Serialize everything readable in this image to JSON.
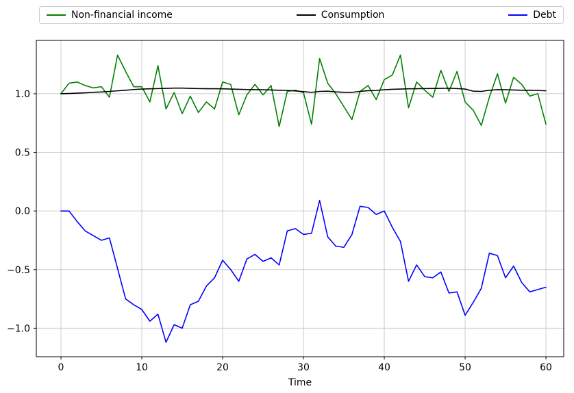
{
  "figure": {
    "background": "#ffffff",
    "grid_color": "#cccccc",
    "spine_color": "#000000"
  },
  "chart_data": {
    "type": "line",
    "title": "",
    "xlabel": "Time",
    "ylabel": "",
    "xlim": [
      -3.05,
      62.2
    ],
    "ylim": [
      -1.243,
      1.455
    ],
    "xticks": [
      0,
      10,
      20,
      30,
      40,
      50,
      60
    ],
    "xtick_labels": [
      "0",
      "10",
      "20",
      "30",
      "40",
      "50",
      "60"
    ],
    "yticks": [
      1.0,
      0.5,
      0.0,
      -0.5,
      -1.0
    ],
    "ytick_labels": [
      "1.0",
      "0.5",
      "0.0",
      "−0.5",
      "−1.0"
    ],
    "grid": true,
    "legend_position": "top-expanded",
    "x": [
      0,
      1,
      2,
      3,
      4,
      5,
      6,
      7,
      8,
      9,
      10,
      11,
      12,
      13,
      14,
      15,
      16,
      17,
      18,
      19,
      20,
      21,
      22,
      23,
      24,
      25,
      26,
      27,
      28,
      29,
      30,
      31,
      32,
      33,
      34,
      35,
      36,
      37,
      38,
      39,
      40,
      41,
      42,
      43,
      44,
      45,
      46,
      47,
      48,
      49,
      50,
      51,
      52,
      53,
      54,
      55,
      56,
      57,
      58,
      59,
      60
    ],
    "series": [
      {
        "name": "Non-financial income",
        "color": "#008000",
        "values": [
          1.0,
          1.09,
          1.1,
          1.07,
          1.05,
          1.06,
          0.97,
          1.33,
          1.19,
          1.06,
          1.06,
          0.93,
          1.24,
          0.87,
          1.01,
          0.83,
          0.98,
          0.84,
          0.93,
          0.87,
          1.1,
          1.08,
          0.82,
          0.99,
          1.08,
          0.99,
          1.07,
          0.72,
          1.02,
          1.03,
          1.01,
          0.74,
          1.3,
          1.09,
          1.0,
          0.89,
          0.78,
          1.02,
          1.07,
          0.95,
          1.12,
          1.16,
          1.33,
          0.88,
          1.1,
          1.03,
          0.97,
          1.2,
          1.02,
          1.19,
          0.93,
          0.86,
          0.73,
          0.97,
          1.17,
          0.92,
          1.14,
          1.08,
          0.98,
          1.0,
          0.74
        ]
      },
      {
        "name": "Consumption",
        "color": "#000000",
        "values": [
          1.0,
          1.002,
          1.005,
          1.008,
          1.012,
          1.015,
          1.02,
          1.025,
          1.03,
          1.036,
          1.04,
          1.042,
          1.044,
          1.046,
          1.048,
          1.048,
          1.046,
          1.044,
          1.043,
          1.043,
          1.042,
          1.04,
          1.038,
          1.036,
          1.035,
          1.034,
          1.032,
          1.03,
          1.028,
          1.024,
          1.018,
          1.012,
          1.02,
          1.022,
          1.016,
          1.012,
          1.012,
          1.02,
          1.026,
          1.028,
          1.034,
          1.038,
          1.04,
          1.042,
          1.043,
          1.044,
          1.045,
          1.046,
          1.047,
          1.044,
          1.04,
          1.022,
          1.02,
          1.03,
          1.035,
          1.034,
          1.032,
          1.03,
          1.03,
          1.028,
          1.025
        ]
      },
      {
        "name": "Debt",
        "color": "#0000ff",
        "values": [
          0.0,
          0.0,
          -0.09,
          -0.17,
          -0.21,
          -0.25,
          -0.23,
          -0.49,
          -0.75,
          -0.8,
          -0.84,
          -0.94,
          -0.88,
          -1.12,
          -0.97,
          -1.0,
          -0.8,
          -0.77,
          -0.64,
          -0.57,
          -0.42,
          -0.5,
          -0.6,
          -0.41,
          -0.37,
          -0.43,
          -0.4,
          -0.46,
          -0.17,
          -0.15,
          -0.2,
          -0.19,
          0.09,
          -0.22,
          -0.3,
          -0.31,
          -0.2,
          0.04,
          0.03,
          -0.03,
          0.0,
          -0.14,
          -0.26,
          -0.6,
          -0.46,
          -0.56,
          -0.57,
          -0.52,
          -0.7,
          -0.69,
          -0.89,
          -0.78,
          -0.66,
          -0.36,
          -0.38,
          -0.57,
          -0.47,
          -0.61,
          -0.69,
          -0.67,
          -0.65
        ]
      }
    ]
  }
}
